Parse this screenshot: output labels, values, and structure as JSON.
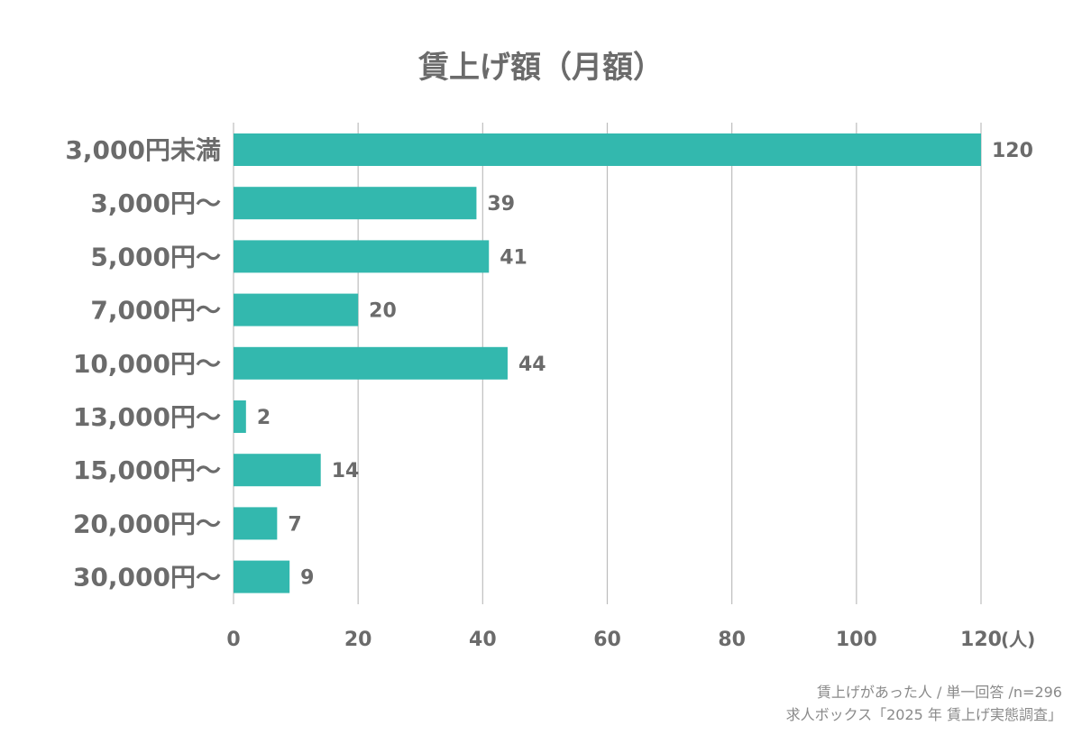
{
  "chart_data": {
    "type": "bar",
    "orientation": "horizontal",
    "title": "賃上げ額（月額）",
    "categories": [
      "3,000円未満",
      "3,000円～",
      "5,000円～",
      "7,000円～",
      "10,000円～",
      "13,000円～",
      "15,000円～",
      "20,000円～",
      "30,000円～"
    ],
    "values": [
      120,
      39,
      41,
      20,
      44,
      2,
      14,
      7,
      9
    ],
    "xlim": [
      0,
      120
    ],
    "xticks": [
      "0",
      "20",
      "40",
      "60",
      "80",
      "100",
      "120"
    ],
    "xunit": "(人)",
    "grid": true,
    "bar_color": "#33b8ae"
  },
  "notes": {
    "line1": "賃上げがあった人 / 単一回答 /n=296",
    "line2": "求人ボックス「2025 年 賃上げ実態調査」"
  }
}
